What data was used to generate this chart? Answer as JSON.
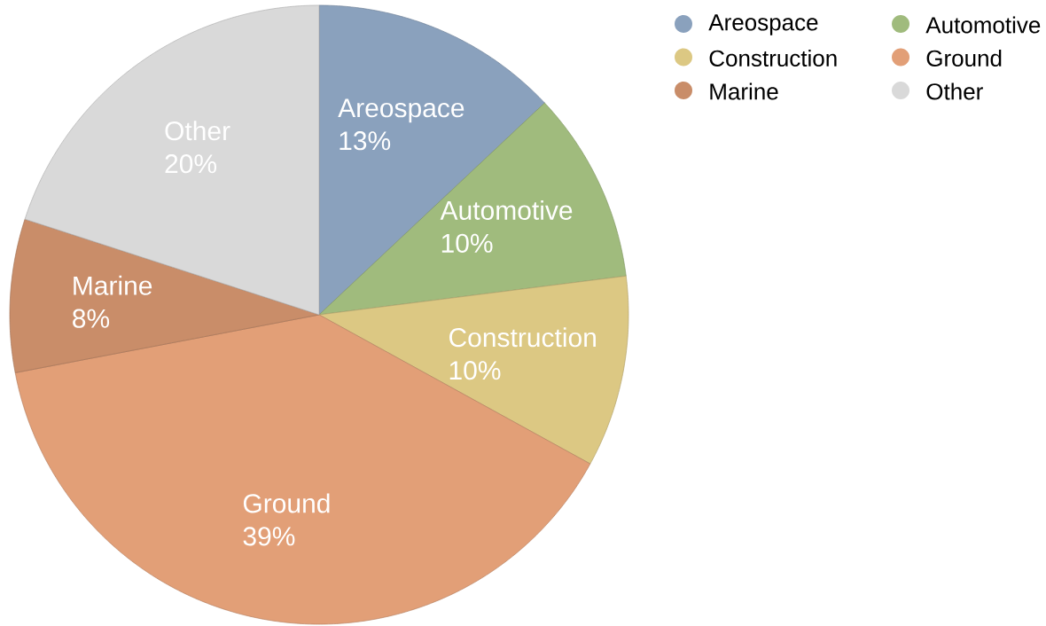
{
  "chart_data": {
    "type": "pie",
    "categories": [
      "Areospace",
      "Automotive",
      "Construction",
      "Ground",
      "Marine",
      "Other"
    ],
    "values": [
      13,
      10,
      10,
      39,
      8,
      20
    ],
    "value_labels": [
      "13%",
      "10%",
      "10%",
      "39%",
      "8%",
      "20%"
    ],
    "colors": [
      "#8aa1bd",
      "#a0bb7d",
      "#dcc883",
      "#e29f77",
      "#c98d69",
      "#d9d9d9"
    ],
    "legend": "top right"
  }
}
